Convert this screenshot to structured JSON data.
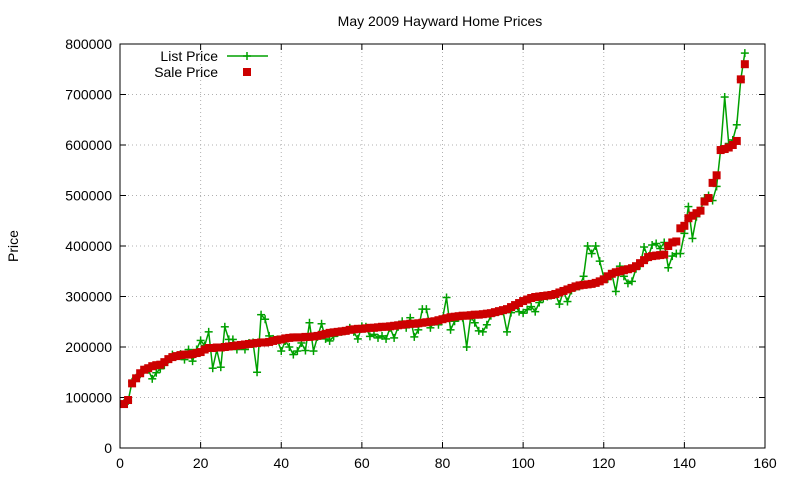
{
  "chart_data": {
    "type": "line",
    "title": "May 2009 Hayward Home Prices",
    "xlabel": "",
    "ylabel": "Price",
    "xlim": [
      0,
      160
    ],
    "ylim": [
      0,
      800000
    ],
    "x_ticks": [
      0,
      20,
      40,
      60,
      80,
      100,
      120,
      140,
      160
    ],
    "y_ticks": [
      0,
      100000,
      200000,
      300000,
      400000,
      500000,
      600000,
      700000,
      800000
    ],
    "x_tick_labels": [
      "0",
      "20",
      "40",
      "60",
      "80",
      "100",
      "120",
      "140",
      "160"
    ],
    "y_tick_labels": [
      "0",
      "100000",
      "200000",
      "300000",
      "400000",
      "500000",
      "600000",
      "700000",
      "800000"
    ],
    "grid": true,
    "legend_position": "top-left",
    "series": [
      {
        "name": "List Price",
        "style": "line-with-plus-markers",
        "color": "#00a000",
        "values": [
          89000,
          93000,
          131000,
          139000,
          146000,
          155000,
          155000,
          137000,
          149000,
          157000,
          164000,
          175000,
          185000,
          182000,
          186000,
          175000,
          195000,
          172000,
          195000,
          213000,
          203000,
          230000,
          158000,
          194000,
          160000,
          240000,
          215000,
          215000,
          195000,
          203000,
          195000,
          208000,
          209000,
          150000,
          264000,
          255000,
          222000,
          216000,
          215000,
          192000,
          212000,
          200000,
          185000,
          192000,
          208000,
          193000,
          248000,
          192000,
          220000,
          246000,
          216000,
          212000,
          221000,
          228000,
          230000,
          232000,
          238000,
          230000,
          216000,
          241000,
          240000,
          221000,
          225000,
          218000,
          222000,
          216000,
          238000,
          218000,
          240000,
          251000,
          238000,
          258000,
          220000,
          234000,
          275000,
          275000,
          238000,
          250000,
          244000,
          256000,
          298000,
          234000,
          251000,
          258000,
          258000,
          200000,
          260000,
          248000,
          232000,
          230000,
          244000,
          262000,
          268000,
          270000,
          271000,
          230000,
          268000,
          282000,
          270000,
          267000,
          274000,
          280000,
          270000,
          288000,
          296000,
          300000,
          302000,
          305000,
          285000,
          311000,
          290000,
          312000,
          318000,
          320000,
          340000,
          400000,
          385000,
          400000,
          370000,
          338000,
          335000,
          345000,
          310000,
          360000,
          340000,
          326000,
          330000,
          355000,
          361000,
          398000,
          377000,
          402000,
          405000,
          395000,
          407000,
          357000,
          380000,
          385000,
          385000,
          425000,
          478000,
          415000,
          458000,
          470000,
          495000,
          500000,
          490000,
          518000,
          592000,
          695000,
          603000,
          610000,
          640000,
          730000,
          782000
        ]
      },
      {
        "name": "Sale Price",
        "style": "square-markers",
        "color": "#cc0000",
        "values": [
          87000,
          95000,
          128000,
          138000,
          148000,
          155000,
          158000,
          162000,
          164000,
          165000,
          170000,
          176000,
          180000,
          182000,
          184000,
          185000,
          185000,
          186000,
          188000,
          190000,
          195000,
          198000,
          198000,
          199000,
          199000,
          200000,
          201000,
          202000,
          203000,
          204000,
          205000,
          206000,
          207000,
          208000,
          209000,
          209000,
          210000,
          212000,
          214000,
          215000,
          217000,
          218000,
          219000,
          219000,
          219000,
          220000,
          220000,
          221000,
          222000,
          224000,
          226000,
          228000,
          229000,
          230000,
          231000,
          232000,
          234000,
          235000,
          236000,
          236000,
          237000,
          238000,
          238000,
          239000,
          240000,
          240000,
          241000,
          242000,
          243000,
          244000,
          245000,
          246000,
          246000,
          247000,
          248000,
          249000,
          250000,
          251000,
          253000,
          255000,
          257000,
          259000,
          260000,
          261000,
          262000,
          262000,
          263000,
          264000,
          264000,
          265000,
          266000,
          267000,
          269000,
          271000,
          273000,
          275000,
          279000,
          283000,
          287000,
          291000,
          294000,
          297000,
          299000,
          300000,
          301000,
          302000,
          303000,
          305000,
          308000,
          311000,
          314000,
          317000,
          320000,
          322000,
          323000,
          324000,
          325000,
          327000,
          330000,
          334000,
          340000,
          345000,
          348000,
          350000,
          352000,
          354000,
          356000,
          360000,
          366000,
          372000,
          378000,
          380000,
          381000,
          382000,
          383000,
          400000,
          407000,
          409000,
          435000,
          440000,
          455000,
          460000,
          465000,
          470000,
          488000,
          495000,
          525000,
          540000,
          590000,
          592000,
          595000,
          600000,
          608000,
          730000,
          760000
        ]
      }
    ]
  }
}
